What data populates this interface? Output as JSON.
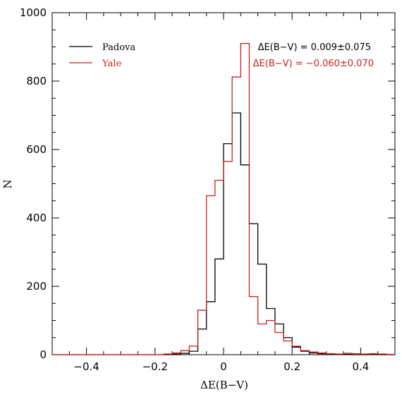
{
  "chart_data": {
    "type": "line",
    "title": "",
    "xlabel": "ΔE(B−V)",
    "ylabel": "N",
    "xlim": [
      -0.5,
      0.5
    ],
    "ylim": [
      0,
      1000
    ],
    "x_ticks": [
      -0.4,
      -0.2,
      0,
      0.2,
      0.4
    ],
    "x_tick_labels": [
      "−0.4",
      "−0.2",
      "0",
      "0.2",
      "0.4"
    ],
    "y_ticks": [
      0,
      200,
      400,
      600,
      800,
      1000
    ],
    "y_tick_labels": [
      "0",
      "200",
      "400",
      "600",
      "800",
      "1000"
    ],
    "grid": false,
    "legend_position": "top-left",
    "bin_width": 0.025,
    "bin_start": -0.5,
    "series": [
      {
        "name": "Padova",
        "color": "#000000",
        "values": [
          0,
          0,
          0,
          0,
          0,
          0,
          0,
          0,
          0,
          0,
          0,
          0,
          0,
          0,
          2,
          4,
          10,
          75,
          155,
          280,
          617,
          707,
          555,
          383,
          265,
          135,
          90,
          50,
          22,
          10,
          5,
          3,
          2,
          1,
          1,
          0,
          0,
          1,
          0,
          0
        ]
      },
      {
        "name": "Yale",
        "color": "#cc2020",
        "values": [
          0,
          0,
          0,
          0,
          0,
          0,
          0,
          0,
          0,
          0,
          0,
          0,
          0,
          2,
          5,
          12,
          25,
          130,
          465,
          510,
          565,
          812,
          910,
          170,
          90,
          100,
          65,
          40,
          25,
          12,
          8,
          5,
          3,
          2,
          4,
          3,
          2,
          3,
          2,
          1
        ]
      }
    ],
    "annotations": [
      {
        "text": "ΔE(B−V)  =  0.009±0.075",
        "color": "#000000"
      },
      {
        "text": "ΔE(B−V)  =  −0.060±0.070",
        "color": "#cc2020"
      }
    ]
  }
}
